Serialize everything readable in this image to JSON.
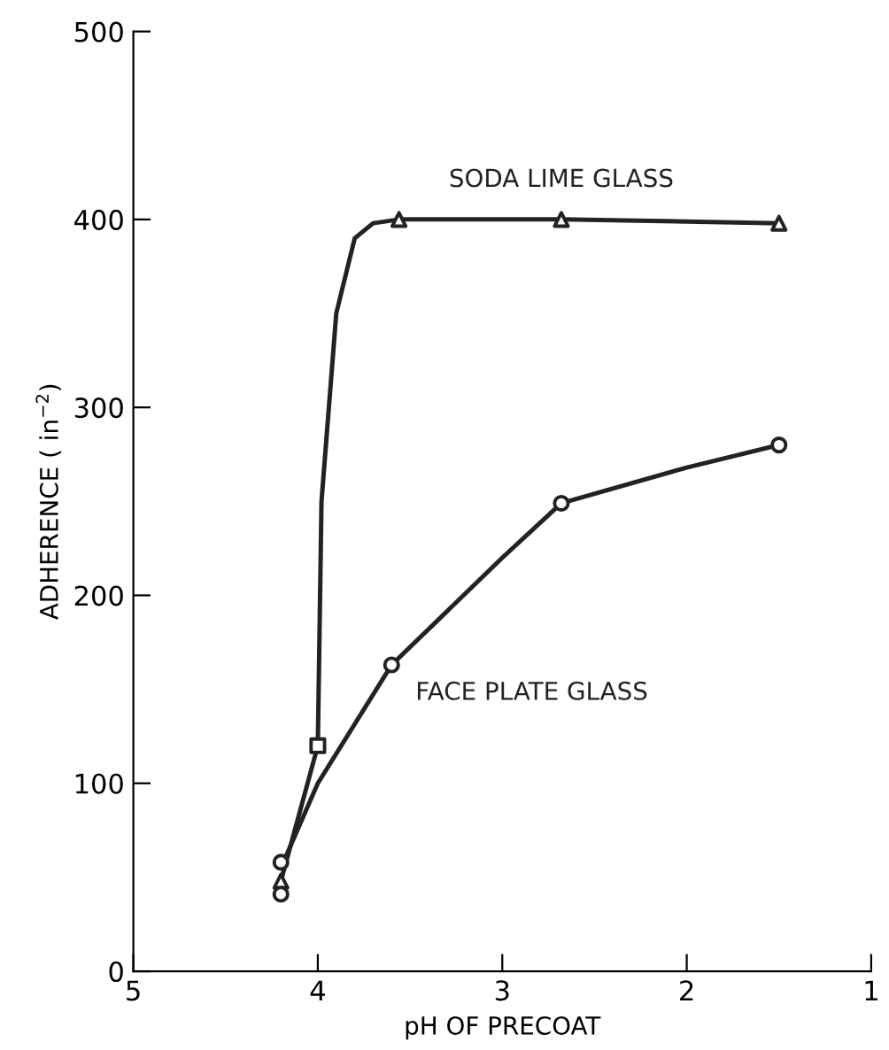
{
  "chart_data": {
    "type": "line",
    "xlabel": "pH OF PRECOAT",
    "ylabel": "ADHERENCE ( in$^{−2}$)",
    "xlim": [
      5,
      1
    ],
    "xticks": [
      5,
      4,
      3,
      2,
      1
    ],
    "ylim": [
      0,
      500
    ],
    "yticks": [
      0,
      100,
      200,
      300,
      400,
      500
    ],
    "grid": false,
    "legend": false,
    "series": [
      {
        "name": "SODA LIME GLASS",
        "color": "#222222",
        "marker": "none",
        "x": [
          4.2,
          4.0,
          3.98,
          3.9,
          3.8,
          3.7,
          3.56,
          2.68,
          1.5
        ],
        "values": [
          48,
          120,
          250,
          350,
          390,
          398,
          400,
          400,
          398
        ]
      },
      {
        "name": "FACE PLATE GLASS",
        "color": "#222222",
        "marker": "none",
        "x": [
          4.2,
          4.0,
          3.6,
          3.0,
          2.68,
          2.0,
          1.5
        ],
        "values": [
          55,
          100,
          163,
          220,
          249,
          268,
          280
        ]
      },
      {
        "type": "scatter",
        "color": "#222222",
        "marker": "triangle",
        "x": [
          4.2,
          3.56,
          2.68,
          1.5
        ],
        "values": [
          48,
          400,
          400,
          398
        ]
      },
      {
        "type": "scatter",
        "color": "#222222",
        "marker": "square",
        "x": [
          4.0
        ],
        "values": [
          120
        ]
      },
      {
        "type": "scatter",
        "color": "#222222",
        "marker": "circle",
        "x": [
          4.2,
          4.2,
          3.6,
          2.68,
          1.5
        ],
        "values": [
          58,
          41,
          163,
          249,
          280
        ]
      }
    ]
  }
}
